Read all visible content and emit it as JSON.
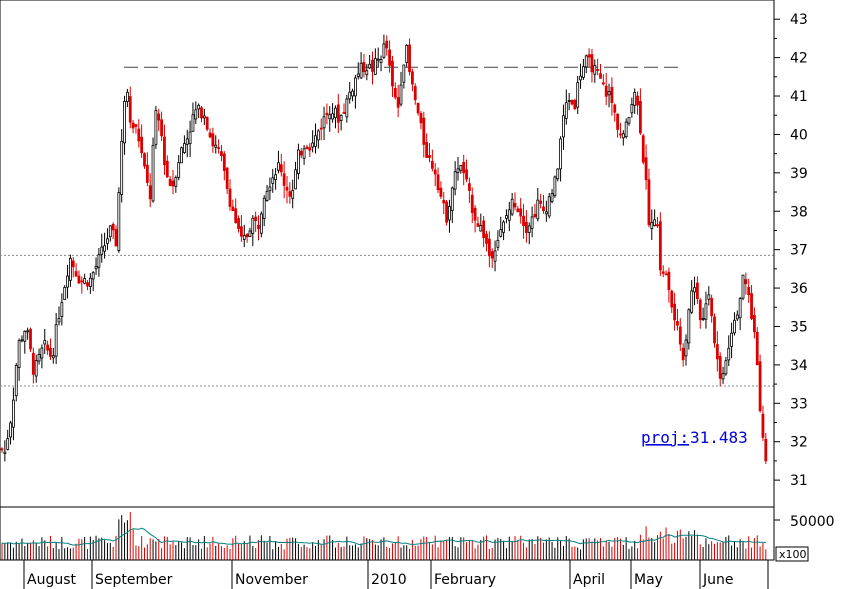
{
  "chart_data": {
    "type": "candlestick",
    "y_ticks": [
      31,
      32,
      33,
      34,
      35,
      36,
      37,
      38,
      39,
      40,
      41,
      42,
      43
    ],
    "ylim": [
      30.3,
      43.5
    ],
    "x_labels": [
      "August",
      "September",
      "November",
      "2010",
      "February",
      "April",
      "May",
      "June"
    ],
    "volume_tick_label": "50000",
    "volume_multiplier": "x100",
    "volume_max": 60000,
    "reference_lines": [
      {
        "style": "dashed",
        "value": 41.75
      },
      {
        "style": "dotted",
        "value": 36.85
      },
      {
        "style": "dotted",
        "value": 33.45
      }
    ],
    "projection": {
      "label": "proj:",
      "value": "31.483"
    },
    "colors": {
      "up": "#000000",
      "down": "#dd0000",
      "volume_average": "#008080",
      "projection": "#0000dd"
    },
    "close_path": [
      [
        0,
        32.0
      ],
      [
        4,
        31.6
      ],
      [
        12,
        32.8
      ],
      [
        18,
        34.5
      ],
      [
        26,
        35.0
      ],
      [
        34,
        33.8
      ],
      [
        44,
        34.5
      ],
      [
        52,
        34.2
      ],
      [
        60,
        35.5
      ],
      [
        70,
        36.8
      ],
      [
        80,
        36.2
      ],
      [
        90,
        36.2
      ],
      [
        100,
        36.8
      ],
      [
        110,
        37.5
      ],
      [
        116,
        37.2
      ],
      [
        120,
        39.0
      ],
      [
        126,
        41.6
      ],
      [
        130,
        40.5
      ],
      [
        138,
        40.0
      ],
      [
        145,
        39.0
      ],
      [
        150,
        38.3
      ],
      [
        155,
        40.5
      ],
      [
        160,
        40.3
      ],
      [
        166,
        39.0
      ],
      [
        172,
        38.6
      ],
      [
        180,
        39.5
      ],
      [
        188,
        40.0
      ],
      [
        195,
        40.6
      ],
      [
        204,
        40.6
      ],
      [
        212,
        39.8
      ],
      [
        220,
        39.5
      ],
      [
        228,
        38.5
      ],
      [
        235,
        37.8
      ],
      [
        241,
        37.2
      ],
      [
        246,
        37.3
      ],
      [
        252,
        37.8
      ],
      [
        258,
        37.6
      ],
      [
        264,
        38.5
      ],
      [
        270,
        38.8
      ],
      [
        278,
        39.2
      ],
      [
        285,
        38.7
      ],
      [
        292,
        38.4
      ],
      [
        298,
        39.4
      ],
      [
        305,
        39.8
      ],
      [
        312,
        39.7
      ],
      [
        320,
        40.2
      ],
      [
        330,
        40.7
      ],
      [
        340,
        40.4
      ],
      [
        350,
        41.1
      ],
      [
        358,
        41.6
      ],
      [
        365,
        41.8
      ],
      [
        372,
        41.7
      ],
      [
        380,
        42.0
      ],
      [
        386,
        42.4
      ],
      [
        392,
        41.2
      ],
      [
        398,
        40.7
      ],
      [
        402,
        41.7
      ],
      [
        406,
        42.3
      ],
      [
        410,
        41.5
      ],
      [
        416,
        40.8
      ],
      [
        422,
        40.0
      ],
      [
        428,
        39.4
      ],
      [
        435,
        39.1
      ],
      [
        440,
        38.5
      ],
      [
        446,
        37.8
      ],
      [
        452,
        38.6
      ],
      [
        458,
        39.2
      ],
      [
        464,
        39.0
      ],
      [
        470,
        38.3
      ],
      [
        476,
        37.8
      ],
      [
        484,
        37.4
      ],
      [
        490,
        36.8
      ],
      [
        496,
        37.2
      ],
      [
        502,
        37.5
      ],
      [
        508,
        38.0
      ],
      [
        514,
        38.3
      ],
      [
        520,
        38.0
      ],
      [
        526,
        37.6
      ],
      [
        532,
        37.8
      ],
      [
        538,
        38.2
      ],
      [
        544,
        38.0
      ],
      [
        550,
        38.4
      ],
      [
        556,
        38.8
      ],
      [
        562,
        40.2
      ],
      [
        568,
        41.0
      ],
      [
        574,
        40.7
      ],
      [
        580,
        41.6
      ],
      [
        586,
        41.9
      ],
      [
        592,
        41.8
      ],
      [
        598,
        41.5
      ],
      [
        604,
        41.2
      ],
      [
        610,
        41.0
      ],
      [
        616,
        40.4
      ],
      [
        622,
        39.9
      ],
      [
        628,
        40.3
      ],
      [
        634,
        41.3
      ],
      [
        640,
        40.3
      ],
      [
        646,
        38.7
      ],
      [
        650,
        37.5
      ],
      [
        656,
        38.0
      ],
      [
        660,
        36.6
      ],
      [
        666,
        36.3
      ],
      [
        672,
        35.5
      ],
      [
        678,
        34.8
      ],
      [
        684,
        34.2
      ],
      [
        690,
        35.8
      ],
      [
        696,
        36.1
      ],
      [
        702,
        35.0
      ],
      [
        708,
        36.1
      ],
      [
        714,
        34.8
      ],
      [
        720,
        33.6
      ],
      [
        726,
        34.2
      ],
      [
        732,
        35.0
      ],
      [
        738,
        35.5
      ],
      [
        744,
        36.3
      ],
      [
        750,
        35.6
      ],
      [
        756,
        34.5
      ],
      [
        760,
        33.0
      ],
      [
        764,
        31.8
      ],
      [
        767,
        31.3
      ]
    ]
  }
}
